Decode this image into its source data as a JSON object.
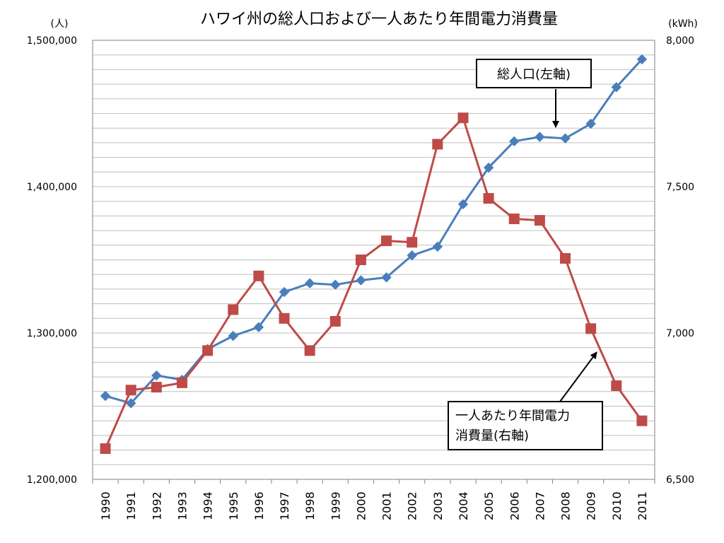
{
  "chart_data": {
    "type": "line",
    "title": "ハワイ州の総人口および一人あたり年間電力消費量",
    "left_unit": "(人)",
    "right_unit": "(kWh)",
    "left_ylim": [
      1200000,
      1500000
    ],
    "right_ylim": [
      6500,
      8000
    ],
    "left_ticks": [
      "1,500,000",
      "1,400,000",
      "1,300,000",
      "1,200,000"
    ],
    "right_ticks": [
      "8,000",
      "7,500",
      "7,000",
      "6,500"
    ],
    "grid": true,
    "x": [
      "1990",
      "1991",
      "1992",
      "1993",
      "1994",
      "1995",
      "1996",
      "1997",
      "1998",
      "1999",
      "2000",
      "2001",
      "2002",
      "2003",
      "2004",
      "2005",
      "2006",
      "2007",
      "2008",
      "2009",
      "2010",
      "2011"
    ],
    "series": [
      {
        "name": "総人口(左軸)",
        "axis": "left",
        "color": "#4a7ebb",
        "marker": "diamond",
        "values": [
          1257000,
          1252000,
          1271000,
          1268000,
          1289000,
          1298000,
          1304000,
          1328000,
          1334000,
          1333000,
          1336000,
          1338000,
          1353000,
          1359000,
          1388000,
          1413000,
          1431000,
          1434000,
          1433000,
          1443000,
          1468000,
          1487000
        ]
      },
      {
        "name": "一人あたり年間電力消費量(右軸)",
        "axis": "right",
        "color": "#be4b48",
        "marker": "square",
        "values": [
          6605,
          6805,
          6815,
          6830,
          6940,
          7080,
          7195,
          7050,
          6940,
          7040,
          7250,
          7315,
          7310,
          7645,
          7735,
          7460,
          7390,
          7385,
          7255,
          7015,
          6820,
          6700
        ]
      }
    ],
    "annotations": [
      {
        "id": "callout_pop",
        "lines": [
          "総人口(左軸)"
        ]
      },
      {
        "id": "callout_elec",
        "lines": [
          "一人あたり年間電力",
          "消費量(右軸)"
        ]
      }
    ]
  }
}
